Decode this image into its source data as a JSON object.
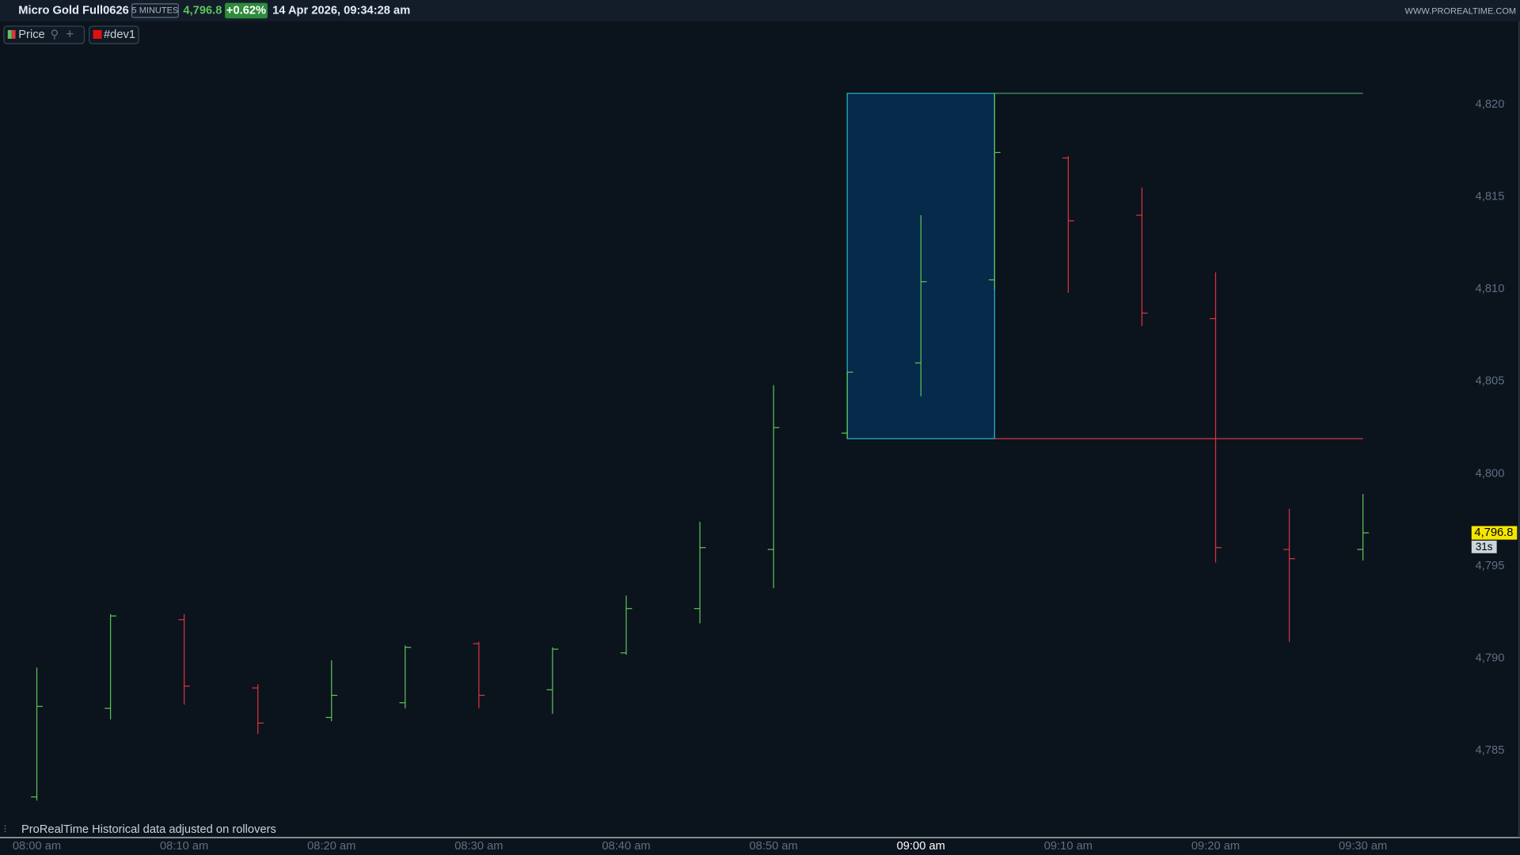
{
  "header": {
    "symbol": "Micro Gold Full0626",
    "timeframe": "5 MINUTES",
    "price": "4,796.8",
    "change": "+0.62%",
    "datetime": "14 Apr 2026, 09:34:28 am",
    "site": "WWW.PROREALTIME.COM"
  },
  "toolbar": {
    "price_button": "Price",
    "indicator_button": "#dev1"
  },
  "footer": {
    "note": "ProRealTime Historical data adjusted on rollovers"
  },
  "chart_data": {
    "type": "ohlc",
    "categories": [
      "08:00 am",
      null,
      "08:10 am",
      null,
      "08:20 am",
      null,
      "08:30 am",
      null,
      "08:40 am",
      null,
      "08:50 am",
      null,
      "09:00 am",
      null,
      "09:10 am",
      null,
      "09:20 am",
      null,
      "09:30 am"
    ],
    "open": [
      4782.5,
      4787.3,
      4792.1,
      4788.4,
      4786.8,
      4787.6,
      4790.8,
      4788.3,
      4790.3,
      4792.7,
      4795.9,
      4802.2,
      4806.0,
      4810.5,
      4817.1,
      4814.0,
      4808.4,
      4795.9,
      4795.9
    ],
    "high": [
      4789.5,
      4792.4,
      4792.4,
      4788.6,
      4789.9,
      4790.7,
      4790.9,
      4790.6,
      4793.4,
      4797.4,
      4804.8,
      4805.5,
      4814.0,
      4820.6,
      4817.2,
      4815.5,
      4810.9,
      4798.1,
      4798.9
    ],
    "low": [
      4782.3,
      4786.7,
      4787.5,
      4785.9,
      4786.6,
      4787.3,
      4787.3,
      4787.0,
      4790.2,
      4791.9,
      4793.8,
      4801.9,
      4804.2,
      4810.0,
      4809.8,
      4808.0,
      4795.2,
      4790.9,
      4795.3
    ],
    "close": [
      4787.4,
      4792.3,
      4788.5,
      4786.5,
      4788.0,
      4790.6,
      4788.0,
      4790.5,
      4792.7,
      4796.0,
      4802.5,
      4805.5,
      4810.4,
      4817.4,
      4813.7,
      4808.7,
      4796.0,
      4795.4,
      4796.8
    ],
    "up_color": "#5cc45c",
    "down_color": "#d9363e",
    "range_high": 4820.6,
    "range_low": 4801.9,
    "range_high_color": "#3aa35a",
    "range_low_color": "#d9363e",
    "range_fill": "#062a4a",
    "range_stroke": "#2ab5c8",
    "last_price": 4796.8,
    "last_price_label": "4,796.8",
    "countdown": "31s",
    "ylim": [
      4780.3,
      4824.5
    ],
    "yticks": [
      {
        "value": 4785,
        "label": "4,785"
      },
      {
        "value": 4790,
        "label": "4,790"
      },
      {
        "value": 4795,
        "label": "4,795"
      },
      {
        "value": 4800,
        "label": "4,800"
      },
      {
        "value": 4805,
        "label": "4,805"
      },
      {
        "value": 4810,
        "label": "4,810"
      },
      {
        "value": 4815,
        "label": "4,815"
      },
      {
        "value": 4820,
        "label": "4,820"
      }
    ]
  }
}
